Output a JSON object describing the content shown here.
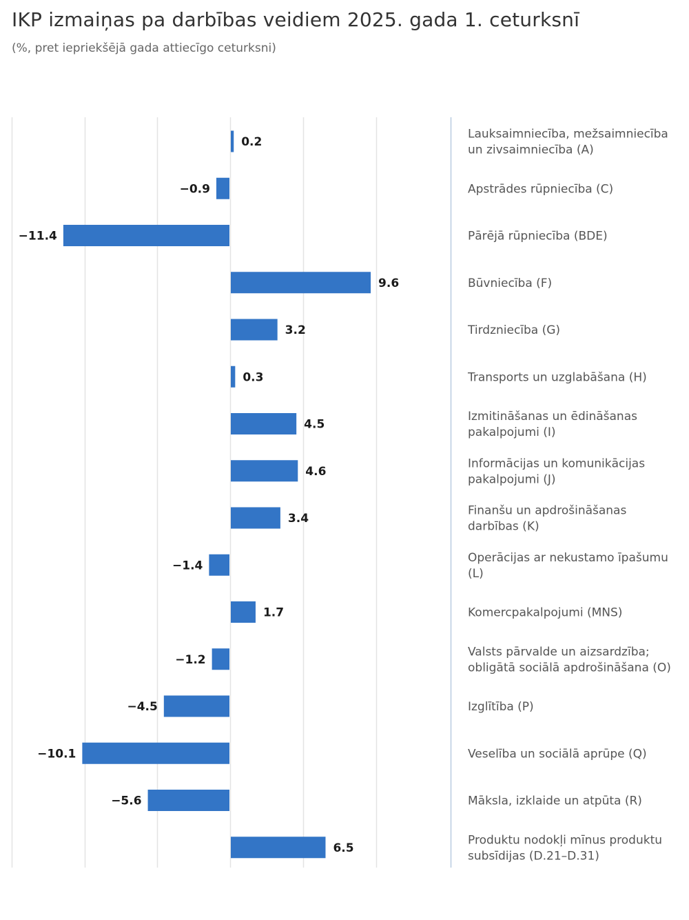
{
  "title": "IKP izmaiņas pa darbības veidiem 2025. gada 1. ceturksnī",
  "subtitle": "(%, pret iepriekšējā gada attiecīgo ceturksni)",
  "colors": {
    "bar": "#3375c6",
    "grid": "#e3e3e3",
    "divider": "#b8cbe0"
  },
  "chart_data": {
    "type": "bar",
    "orientation": "horizontal",
    "title": "IKP izmaiņas pa darbības veidiem 2025. gada 1. ceturksnī",
    "subtitle": "(%, pret iepriekšējā gada attiecīgo ceturksni)",
    "categories": [
      [
        "Lauksaimniecība, mežsaimniecība",
        "un zivsaimniecība (A)"
      ],
      [
        "Apstrādes rūpniecība (C)"
      ],
      [
        "Pārējā rūpniecība (BDE)"
      ],
      [
        "Būvniecība (F)"
      ],
      [
        "Tirdzniecība (G)"
      ],
      [
        "Transports un uzglabāšana (H)"
      ],
      [
        "Izmitināšanas un ēdināšanas",
        "pakalpojumi (I)"
      ],
      [
        "Informācijas un komunikācijas",
        "pakalpojumi (J)"
      ],
      [
        "Finanšu un apdrošināšanas",
        "darbības (K)"
      ],
      [
        "Operācijas ar nekustamo īpašumu",
        "(L)"
      ],
      [
        "Komercpakalpojumi (MNS)"
      ],
      [
        "Valsts pārvalde un aizsardzība;",
        "obligātā sociālā apdrošināšana (O)"
      ],
      [
        "Izglītība (P)"
      ],
      [
        "Veselība un sociālā aprūpe (Q)"
      ],
      [
        "Māksla, izklaide un atpūta (R)"
      ],
      [
        "Produktu nodokļi mīnus produktu",
        "subsīdijas (D.21–D.31)"
      ]
    ],
    "values": [
      0.2,
      -0.9,
      -11.4,
      9.6,
      3.2,
      0.3,
      4.5,
      4.6,
      3.4,
      -1.4,
      1.7,
      -1.2,
      -4.5,
      -10.1,
      -5.6,
      6.5
    ],
    "value_labels": [
      "0.2",
      "−0.9",
      "−11.4",
      "9.6",
      "3.2",
      "0.3",
      "4.5",
      "4.6",
      "3.4",
      "−1.4",
      "1.7",
      "−1.2",
      "−4.5",
      "−10.1",
      "−5.6",
      "6.5"
    ],
    "xlim": [
      -15,
      15
    ],
    "grid": true,
    "legend": "none"
  }
}
